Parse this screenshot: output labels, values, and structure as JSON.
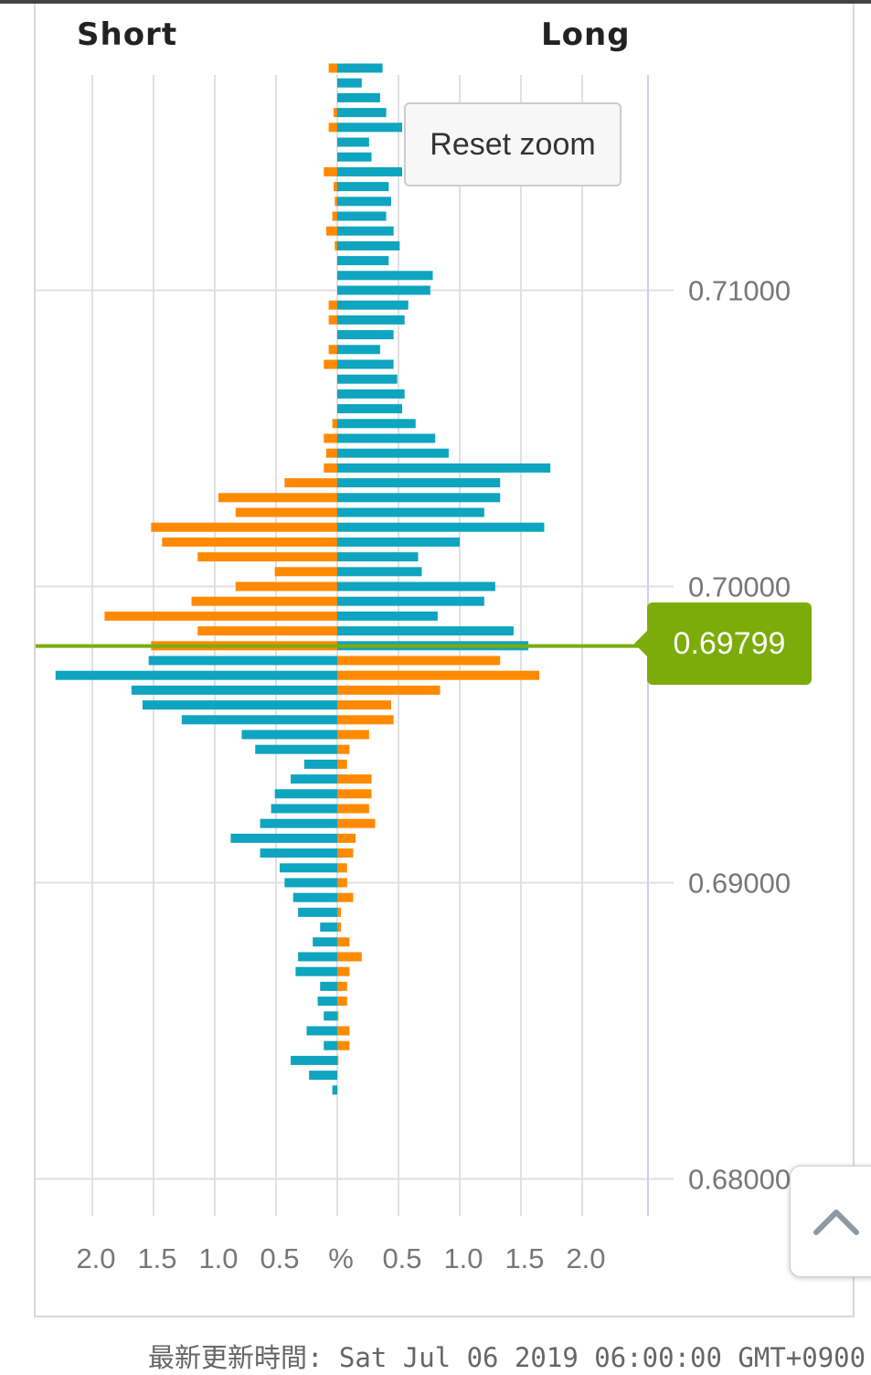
{
  "header": {
    "short_label": "Short",
    "long_label": "Long"
  },
  "reset_zoom_label": "Reset zoom",
  "current_price": "0.69799",
  "updated_text": "最新更新時間: Sat Jul 06 2019 06:00:00 GMT+0900",
  "colors": {
    "orange": "#ff8a00",
    "teal": "#0fa4bf",
    "price_line": "#7cac0a",
    "grid": "#e0e0e0",
    "axis": "#c9d3e6"
  },
  "icons": {
    "scroll_top": "chevron-up-icon"
  },
  "chart_data": {
    "type": "bar",
    "orientation": "horizontal-butterfly",
    "price_axis": {
      "ticks": [
        "0.71000",
        "0.70000",
        "0.69000",
        "0.68000"
      ],
      "tick_values": [
        0.71,
        0.7,
        0.69,
        0.68
      ]
    },
    "percent_axis": {
      "labels": [
        "2.0",
        "1.5",
        "1.0",
        "0.5",
        "%",
        "0.5",
        "1.0",
        "1.5",
        "2.0"
      ],
      "xlim": [
        -2.5,
        2.5
      ]
    },
    "current_price": 0.69799,
    "level_step": 0.0005,
    "levels": [
      0.7175,
      0.717,
      0.7165,
      0.716,
      0.7155,
      0.715,
      0.7145,
      0.714,
      0.7135,
      0.713,
      0.7125,
      0.712,
      0.7115,
      0.711,
      0.7105,
      0.71,
      0.7095,
      0.709,
      0.7085,
      0.708,
      0.7075,
      0.707,
      0.7065,
      0.706,
      0.7055,
      0.705,
      0.7045,
      0.704,
      0.7035,
      0.703,
      0.7025,
      0.702,
      0.7015,
      0.701,
      0.7005,
      0.7,
      0.6995,
      0.699,
      0.6985,
      0.698,
      0.6975,
      0.697,
      0.6965,
      0.696,
      0.6955,
      0.695,
      0.6945,
      0.694,
      0.6935,
      0.693,
      0.6925,
      0.692,
      0.6915,
      0.691,
      0.6905,
      0.69,
      0.6895,
      0.689,
      0.6885,
      0.688,
      0.6875,
      0.687,
      0.6865,
      0.686,
      0.6855,
      0.685,
      0.6845,
      0.684,
      0.6835,
      0.683
    ],
    "series": [
      {
        "name": "Short",
        "side": "left",
        "values": [
          0.07,
          0,
          0,
          0.03,
          0.07,
          0,
          0,
          0.11,
          0.03,
          0.02,
          0.04,
          0.09,
          0.02,
          0,
          0,
          0,
          0.07,
          0.07,
          0,
          0.07,
          0.11,
          0,
          0,
          0,
          0.04,
          0.11,
          0.09,
          0.11,
          0.43,
          0.97,
          0.83,
          1.52,
          1.43,
          1.14,
          0.51,
          0.83,
          1.19,
          1.9,
          1.14,
          1.52,
          1.54,
          2.3,
          1.68,
          1.59,
          1.27,
          0.78,
          0.67,
          0.27,
          0.38,
          0.51,
          0.54,
          0.63,
          0.87,
          0.63,
          0.47,
          0.43,
          0.36,
          0.32,
          0.14,
          0.2,
          0.32,
          0.34,
          0.14,
          0.16,
          0.11,
          0.25,
          0.11,
          0.38,
          0.23,
          0.04
        ]
      },
      {
        "name": "Long",
        "side": "right",
        "values": [
          0.37,
          0.2,
          0.35,
          0.4,
          0.53,
          0.26,
          0.28,
          0.53,
          0.42,
          0.44,
          0.4,
          0.46,
          0.51,
          0.42,
          0.78,
          0.76,
          0.58,
          0.55,
          0.46,
          0.35,
          0.46,
          0.49,
          0.55,
          0.53,
          0.64,
          0.8,
          0.91,
          1.74,
          1.33,
          1.33,
          1.2,
          1.69,
          1.0,
          0.66,
          0.69,
          1.29,
          1.2,
          0.82,
          1.44,
          1.56,
          1.33,
          1.65,
          0.84,
          0.44,
          0.46,
          0.26,
          0.1,
          0.08,
          0.28,
          0.28,
          0.26,
          0.31,
          0.15,
          0.13,
          0.08,
          0.08,
          0.13,
          0.03,
          0.03,
          0.1,
          0.2,
          0.1,
          0.08,
          0.08,
          0.01,
          0.1,
          0.1,
          0.01,
          0,
          0
        ]
      }
    ],
    "color_rule": "Short bars orange above current price and teal below; Long bars teal above and orange below"
  }
}
